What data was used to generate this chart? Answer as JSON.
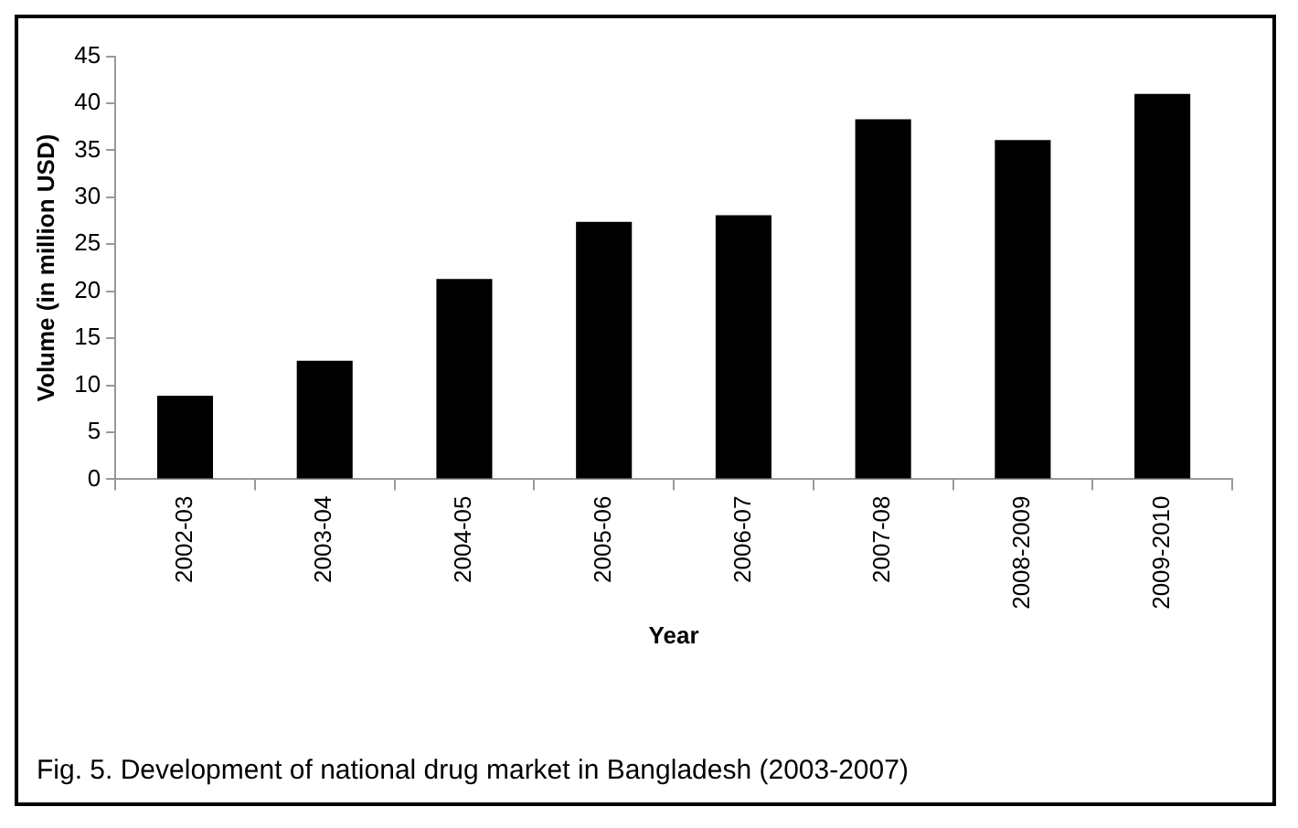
{
  "chart_data": {
    "type": "bar",
    "xlabel": "Year",
    "ylabel": "Volume (in million USD)",
    "categories": [
      "2002-03",
      "2003-04",
      "2004-05",
      "2005-06",
      "2006-07",
      "2007-08",
      "2008-2009",
      "2009-2010"
    ],
    "values": [
      8.9,
      12.6,
      21.3,
      27.4,
      28.1,
      38.3,
      36.1,
      41.0
    ],
    "color": "#000000",
    "ylim": [
      0,
      45
    ],
    "yticks": [
      0,
      5,
      10,
      15,
      20,
      25,
      30,
      35,
      40,
      45
    ],
    "grid": false,
    "legend": false,
    "annotations": [
      "Fig. 5. Development of national drug market in Bangladesh (2003-2007)"
    ]
  }
}
